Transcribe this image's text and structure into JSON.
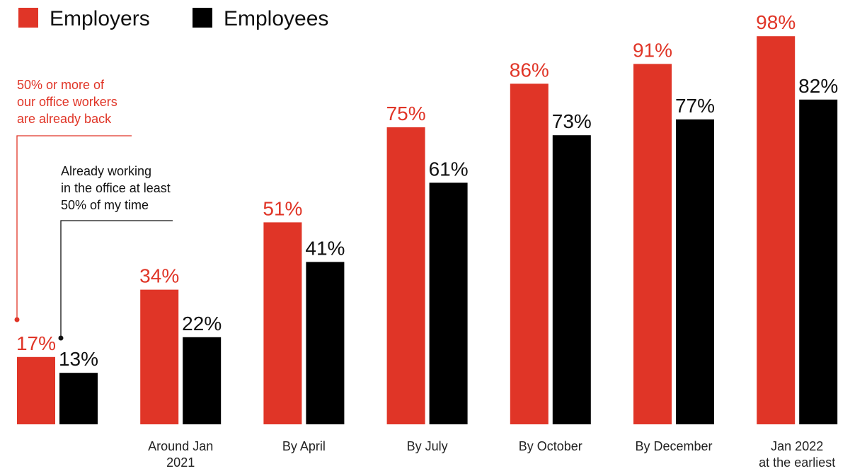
{
  "chart_data": {
    "type": "bar",
    "categories": [
      [
        "",
        ""
      ],
      [
        "Around Jan",
        "2021"
      ],
      [
        "By April",
        ""
      ],
      [
        "By July",
        ""
      ],
      [
        "By October",
        ""
      ],
      [
        "By December",
        ""
      ],
      [
        "Jan 2022",
        "at the earliest"
      ]
    ],
    "series": [
      {
        "name": "Employers",
        "color": "#e03527",
        "values": [
          17,
          34,
          51,
          75,
          86,
          91,
          98
        ],
        "labels": [
          "17%",
          "34%",
          "51%",
          "75%",
          "86%",
          "91%",
          "98%"
        ]
      },
      {
        "name": "Employees",
        "color": "#000000",
        "values": [
          13,
          22,
          41,
          61,
          73,
          77,
          82
        ],
        "labels": [
          "13%",
          "22%",
          "41%",
          "61%",
          "73%",
          "77%",
          "82%"
        ]
      }
    ],
    "ylim": [
      0,
      100
    ],
    "grid": false,
    "legend_position": "top-left",
    "annotations": [
      {
        "series": 0,
        "category": 0,
        "color": "#e03527",
        "lines": [
          "50% or more of",
          "our office workers",
          "are already back"
        ]
      },
      {
        "series": 1,
        "category": 0,
        "color": "#111111",
        "lines": [
          "Already working",
          "in the office at least",
          "50% of my time"
        ]
      }
    ]
  }
}
